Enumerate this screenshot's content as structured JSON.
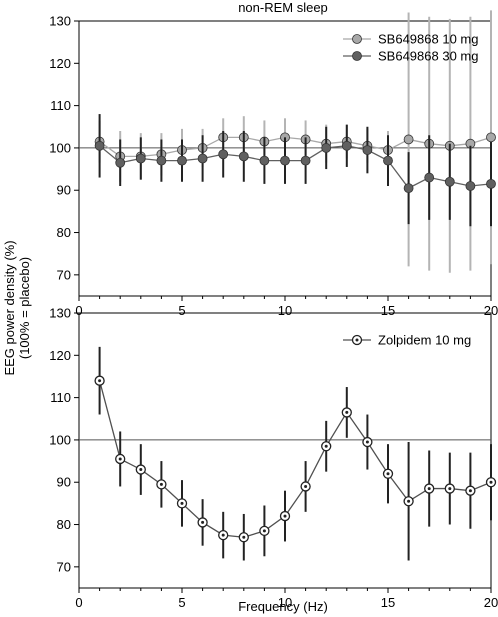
{
  "chart_data": [
    {
      "type": "line",
      "title": "non-REM sleep",
      "xlabel": "",
      "ylabel": "",
      "xlim": [
        0,
        20
      ],
      "ylim": [
        65,
        130
      ],
      "xticks": [
        0,
        5,
        10,
        15,
        20
      ],
      "yticks": [
        70,
        80,
        90,
        100,
        110,
        120,
        130
      ],
      "reference_line": 100,
      "legend_position": "top-right",
      "series": [
        {
          "name": "SB649868 10 mg",
          "color": "#a8a8a8",
          "marker": "filled-circle",
          "x": [
            1,
            2,
            3,
            4,
            5,
            6,
            7,
            8,
            9,
            10,
            11,
            12,
            13,
            14,
            15,
            16,
            17,
            18,
            19,
            20
          ],
          "y": [
            101.5,
            98,
            98,
            98.5,
            99.5,
            100,
            102.5,
            102.5,
            101.5,
            102.5,
            102,
            101,
            101.5,
            100.5,
            99.5,
            102,
            101,
            100.5,
            101,
            102.5
          ],
          "err": [
            5,
            6,
            5.5,
            5,
            5,
            4.5,
            4.5,
            5,
            5,
            4.5,
            4.5,
            4.5,
            4,
            4,
            4.5,
            30,
            30,
            30,
            30,
            30
          ]
        },
        {
          "name": "SB649868 30 mg",
          "color": "#606060",
          "marker": "filled-circle",
          "x": [
            1,
            2,
            3,
            4,
            5,
            6,
            7,
            8,
            9,
            10,
            11,
            12,
            13,
            14,
            15,
            16,
            17,
            18,
            19,
            20
          ],
          "y": [
            100.5,
            96.5,
            97.5,
            97,
            97,
            97.5,
            98.5,
            98,
            97,
            97,
            97,
            100,
            100.5,
            99.5,
            97,
            90.5,
            93,
            92,
            91,
            91.5
          ],
          "err": [
            7.5,
            5.5,
            5,
            5,
            5,
            5.5,
            5.5,
            6,
            5.5,
            5.5,
            5.5,
            5,
            5,
            5.5,
            6,
            8.5,
            10,
            9,
            9.5,
            10
          ]
        }
      ]
    },
    {
      "type": "line",
      "title": "",
      "xlabel": "Frequency (Hz)",
      "ylabel": "",
      "xlim": [
        0,
        20
      ],
      "ylim": [
        65,
        130
      ],
      "xticks": [
        0,
        5,
        10,
        15,
        20
      ],
      "yticks": [
        70,
        80,
        90,
        100,
        110,
        120,
        130
      ],
      "reference_line": 100,
      "legend_position": "top-right",
      "series": [
        {
          "name": "Zolpidem 10 mg",
          "color": "#505050",
          "marker": "dotted-circle",
          "x": [
            1,
            2,
            3,
            4,
            5,
            6,
            7,
            8,
            9,
            10,
            11,
            12,
            13,
            14,
            15,
            16,
            17,
            18,
            19,
            20
          ],
          "y": [
            114,
            95.5,
            93,
            89.5,
            85,
            80.5,
            77.5,
            77,
            78.5,
            82,
            89,
            98.5,
            106.5,
            99.5,
            92,
            85.5,
            88.5,
            88.5,
            88,
            90
          ],
          "err": [
            8,
            6.5,
            6,
            5.5,
            5.5,
            5.5,
            5.5,
            5.5,
            6,
            6,
            6,
            6,
            6,
            6.5,
            7,
            14,
            9,
            8.5,
            9,
            9
          ]
        }
      ]
    }
  ],
  "figure": {
    "shared_ylabel_line1": "EEG power density (%)",
    "shared_ylabel_line2": "(100% = placebo)"
  }
}
